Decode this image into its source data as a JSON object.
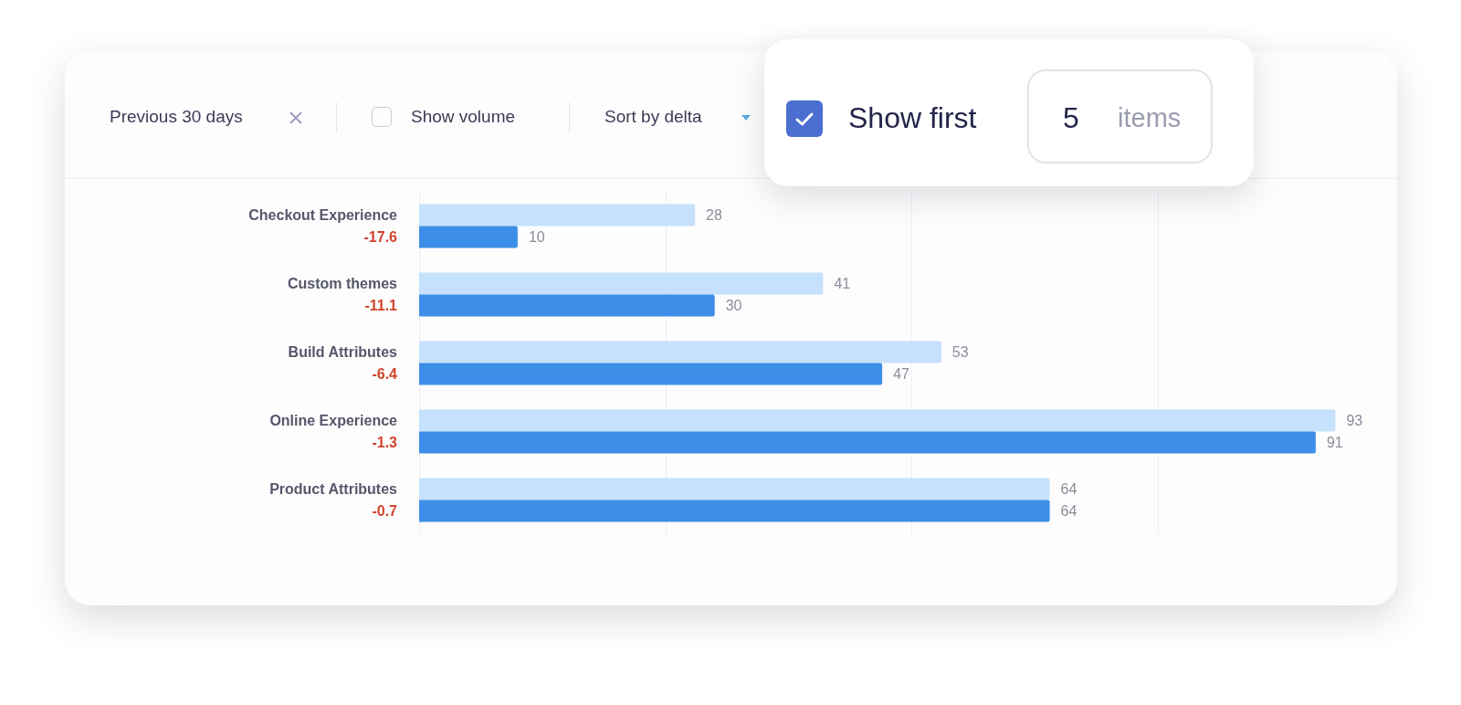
{
  "chart_data": {
    "type": "bar",
    "orientation": "horizontal",
    "categories": [
      "Checkout Experience",
      "Custom themes",
      "Build Attributes",
      "Online Experience",
      "Product Attributes"
    ],
    "series": [
      {
        "color": "#c5e1fb",
        "values": [
          28,
          41,
          53,
          93,
          64
        ]
      },
      {
        "color": "#3d8ee8",
        "values": [
          10,
          30,
          47,
          91,
          64
        ]
      }
    ],
    "data_labels": true,
    "xticks": [
      {
        "value": 0,
        "label": null
      },
      {
        "value": 25,
        "label": null
      },
      {
        "value": 50,
        "label": null
      },
      {
        "value": 75,
        "label": null
      }
    ],
    "tick_labels": "y",
    "grid": "x",
    "annotations": [
      "Previous 30 days",
      "Show volume",
      "Sort by delta",
      "Show first",
      "5",
      "items",
      "-17.6",
      "-11.1",
      "-6.4",
      "-1.3",
      "-0.7"
    ]
  }
}
